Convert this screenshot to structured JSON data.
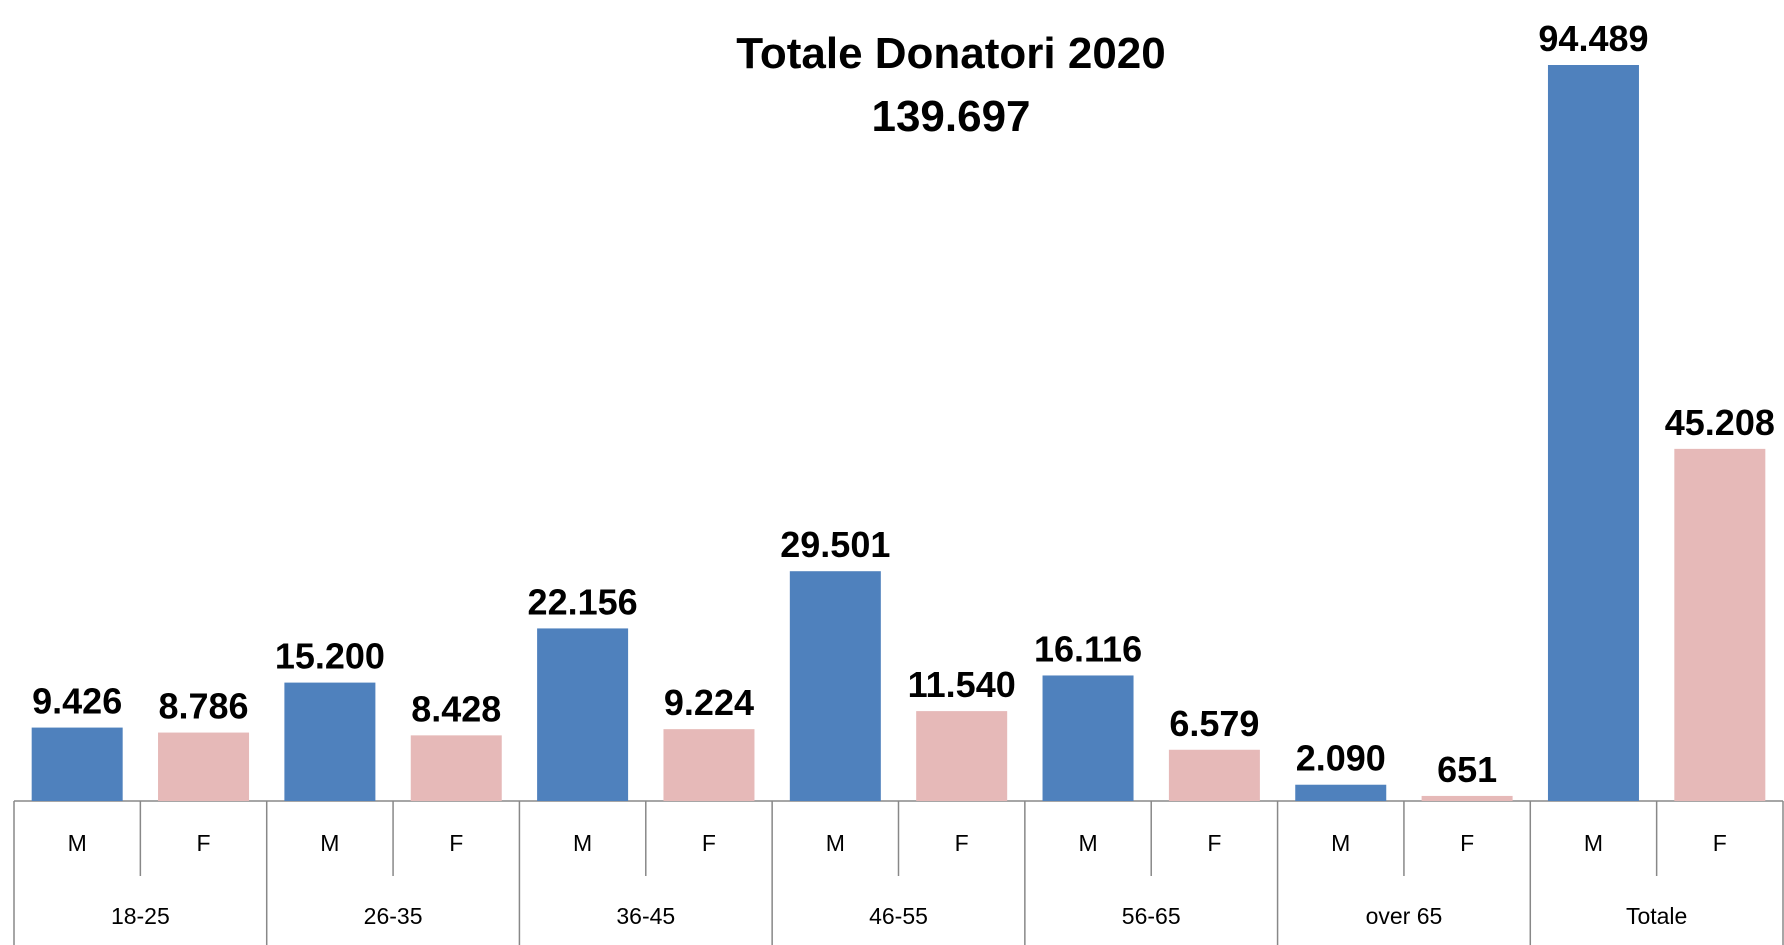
{
  "chart_data": {
    "type": "bar",
    "title": "Totale Donatori 2020",
    "subtitle": "139.697",
    "categories": [
      "18-25",
      "26-35",
      "36-45",
      "46-55",
      "56-65",
      "over 65",
      "Totale"
    ],
    "series": [
      {
        "name": "M",
        "color": "#4f81bd",
        "values": [
          9426,
          15200,
          22156,
          29501,
          16116,
          2090,
          94489
        ],
        "value_labels": [
          "9.426",
          "15.200",
          "22.156",
          "29.501",
          "16.116",
          "2.090",
          "94.489"
        ]
      },
      {
        "name": "F",
        "color": "#e6b9b8",
        "values": [
          8786,
          8428,
          9224,
          11540,
          6579,
          651,
          45208
        ],
        "value_labels": [
          "8.786",
          "8.428",
          "9.224",
          "11.540",
          "6.579",
          "651",
          "45.208"
        ]
      }
    ]
  }
}
